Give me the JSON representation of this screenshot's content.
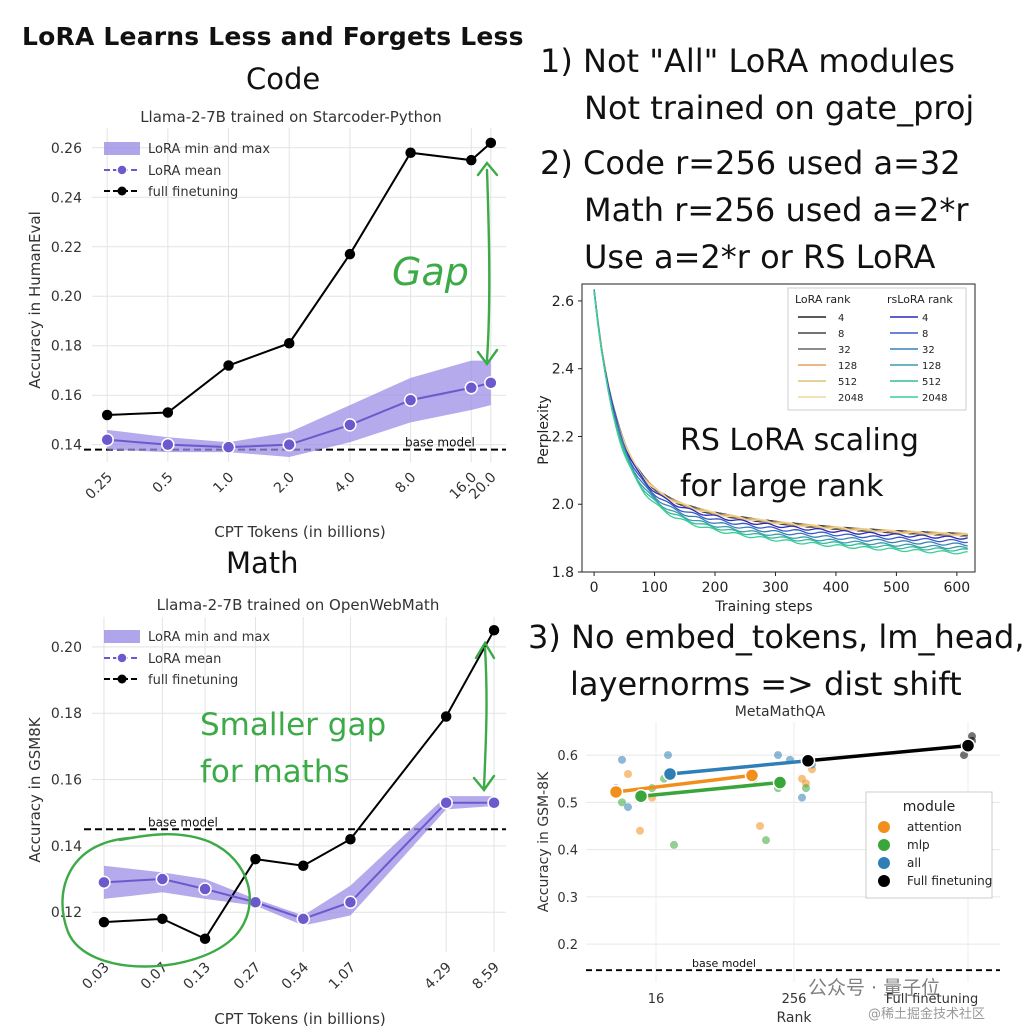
{
  "header": {
    "title": "LoRA Learns Less and Forgets Less"
  },
  "notes": {
    "n1_line1": "1) Not \"All\" LoRA modules",
    "n1_line2": "Not trained on gate_proj",
    "n2_line1": "2) Code r=256 used a=32",
    "n2_line2": "Math r=256 used a=2*r",
    "n2_line3": "Use a=2*r or RS LoRA",
    "n3_line1": "3) No embed_tokens, lm_head,",
    "n3_line2": "layernorms => dist shift"
  },
  "annotations": {
    "code_heading": "Code",
    "math_heading": "Math",
    "gap": "Gap",
    "smaller_gap_1": "Smaller gap",
    "smaller_gap_2": "for maths",
    "rs_1": "RS LoRA scaling",
    "rs_2": "for large rank",
    "annotation_color": "#3daa48"
  },
  "watermark": {
    "line1": "公众号 · 量子位",
    "line2": "@稀土掘金技术社区"
  },
  "colors": {
    "lora": "#6a5acd",
    "lora_band": "#9b8ee6",
    "full": "#000000",
    "attention": "#f28e1c",
    "mlp": "#3aa53a",
    "all": "#2f7fb6"
  },
  "chart_data": [
    {
      "id": "code",
      "type": "line",
      "title": "Llama-2-7B trained on Starcoder-Python",
      "xlabel": "CPT Tokens (in billions)",
      "ylabel": "Accuracy in HumanEval",
      "x_ticks": [
        "0.25",
        "0.5",
        "1.0",
        "2.0",
        "4.0",
        "8.0",
        "16.0",
        "20.0"
      ],
      "x": [
        0.25,
        0.5,
        1.0,
        2.0,
        4.0,
        8.0,
        16.0,
        20.0
      ],
      "x_scale": "log",
      "ylim": [
        0.133,
        0.268
      ],
      "y_ticks": [
        "0.14",
        "0.16",
        "0.18",
        "0.20",
        "0.22",
        "0.24",
        "0.26"
      ],
      "legend": [
        "LoRA min and max",
        "LoRA mean",
        "full finetuning"
      ],
      "legend_position": "top-left",
      "base_model": 0.138,
      "base_model_label": "base model",
      "series": [
        {
          "name": "full finetuning",
          "values": [
            0.152,
            0.153,
            0.172,
            0.181,
            0.217,
            0.258,
            0.255,
            0.262
          ]
        },
        {
          "name": "LoRA mean",
          "values": [
            0.142,
            0.14,
            0.139,
            0.14,
            0.148,
            0.158,
            0.163,
            0.165
          ]
        },
        {
          "name": "LoRA min",
          "values": [
            0.138,
            0.137,
            0.137,
            0.135,
            0.141,
            0.149,
            0.154,
            0.156
          ]
        },
        {
          "name": "LoRA max",
          "values": [
            0.146,
            0.143,
            0.141,
            0.145,
            0.156,
            0.167,
            0.174,
            0.174
          ]
        }
      ]
    },
    {
      "id": "math",
      "type": "line",
      "title": "Llama-2-7B trained on OpenWebMath",
      "xlabel": "CPT Tokens (in billions)",
      "ylabel": "Accuracy in GSM8K",
      "x_ticks": [
        "0.03",
        "0.07",
        "0.13",
        "0.27",
        "0.54",
        "1.07",
        "4.29",
        "8.59"
      ],
      "x_scale": "log",
      "ylim": [
        0.108,
        0.209
      ],
      "y_ticks": [
        "0.12",
        "0.14",
        "0.16",
        "0.18",
        "0.20"
      ],
      "legend": [
        "LoRA min and max",
        "LoRA mean",
        "full finetuning"
      ],
      "legend_position": "top-left",
      "base_model": 0.145,
      "base_model_label": "base model",
      "series": [
        {
          "name": "full finetuning",
          "x": [
            0.03,
            0.07,
            0.13,
            0.27,
            0.54,
            1.07,
            4.29,
            8.59
          ],
          "values": [
            0.117,
            0.118,
            0.112,
            0.136,
            0.134,
            0.142,
            0.179,
            0.205
          ]
        },
        {
          "name": "LoRA mean",
          "x": [
            0.03,
            0.07,
            0.13,
            0.27,
            0.54,
            1.07,
            4.29,
            8.59
          ],
          "values": [
            0.129,
            0.13,
            0.127,
            0.123,
            0.118,
            0.123,
            0.153,
            0.153
          ]
        },
        {
          "name": "LoRA min",
          "x": [
            0.03,
            0.07,
            0.13,
            0.27,
            0.54,
            1.07,
            4.29,
            8.59
          ],
          "values": [
            0.124,
            0.126,
            0.124,
            0.122,
            0.116,
            0.119,
            0.151,
            0.152
          ]
        },
        {
          "name": "LoRA max",
          "x": [
            0.03,
            0.07,
            0.13,
            0.27,
            0.54,
            1.07,
            4.29,
            8.59
          ],
          "values": [
            0.134,
            0.132,
            0.13,
            0.124,
            0.119,
            0.128,
            0.155,
            0.155
          ]
        }
      ]
    },
    {
      "id": "perplexity",
      "type": "line",
      "title": "",
      "xlabel": "Training steps",
      "ylabel": "Perplexity",
      "xlim": [
        -20,
        630
      ],
      "x_ticks": [
        0,
        100,
        200,
        300,
        400,
        500,
        600
      ],
      "ylim": [
        1.8,
        2.65
      ],
      "y_ticks": [
        "1.8",
        "2.0",
        "2.2",
        "2.4",
        "2.6"
      ],
      "legend_columns": [
        "LoRA rank",
        "rsLoRA rank"
      ],
      "legend_ranks": [
        "4",
        "8",
        "32",
        "128",
        "512",
        "2048"
      ],
      "legend_position": "top-right",
      "series": [
        {
          "name": "LoRA 4",
          "color": "#222222",
          "start": 2.63,
          "end": 1.895
        },
        {
          "name": "LoRA 8",
          "color": "#444444",
          "start": 2.63,
          "end": 1.895
        },
        {
          "name": "LoRA 32",
          "color": "#666666",
          "start": 2.63,
          "end": 1.895
        },
        {
          "name": "LoRA 128",
          "color": "#e0a060",
          "start": 2.63,
          "end": 1.895
        },
        {
          "name": "LoRA 512",
          "color": "#e0c07a",
          "start": 2.63,
          "end": 1.895
        },
        {
          "name": "LoRA 2048",
          "color": "#f0d89a",
          "start": 2.63,
          "end": 1.895
        },
        {
          "name": "rsLoRA 4",
          "color": "#2a2ab8",
          "start": 2.63,
          "end": 1.885
        },
        {
          "name": "rsLoRA 8",
          "color": "#3a5ac8",
          "start": 2.63,
          "end": 1.875
        },
        {
          "name": "rsLoRA 32",
          "color": "#3a80b8",
          "start": 2.63,
          "end": 1.865
        },
        {
          "name": "rsLoRA 128",
          "color": "#3a9ea8",
          "start": 2.63,
          "end": 1.855
        },
        {
          "name": "rsLoRA 512",
          "color": "#3ab8a0",
          "start": 2.63,
          "end": 1.848
        },
        {
          "name": "rsLoRA 2048",
          "color": "#3ccf98",
          "start": 2.63,
          "end": 1.84
        }
      ]
    },
    {
      "id": "metamath",
      "type": "scatter",
      "title": "MetaMathQA",
      "xlabel": "Rank",
      "ylabel": "Accuracy in GSM-8K",
      "x_ticks": [
        "16",
        "256",
        "Full finetuning"
      ],
      "ylim": [
        0.12,
        0.67
      ],
      "y_ticks": [
        "0.2",
        "0.3",
        "0.4",
        "0.5",
        "0.6"
      ],
      "base_model": 0.145,
      "base_model_label": "base model",
      "legend_title": "module",
      "legend": [
        "attention",
        "mlp",
        "all",
        "Full finetuning"
      ],
      "legend_position": "right",
      "series": [
        {
          "name": "attention",
          "color": "#f28e1c",
          "fit": [
            [
              0,
              0.522
            ],
            [
              1,
              0.557
            ]
          ],
          "points": [
            [
              0,
              0.52
            ],
            [
              0,
              0.56
            ],
            [
              0,
              0.44
            ],
            [
              0,
              0.51
            ],
            [
              1,
              0.55
            ],
            [
              1,
              0.57
            ],
            [
              1,
              0.45
            ],
            [
              1,
              0.54
            ]
          ]
        },
        {
          "name": "mlp",
          "color": "#3aa53a",
          "fit": [
            [
              0,
              0.513
            ],
            [
              1,
              0.542
            ]
          ],
          "points": [
            [
              0,
              0.53
            ],
            [
              0,
              0.55
            ],
            [
              0,
              0.41
            ],
            [
              0,
              0.5
            ],
            [
              1,
              0.53
            ],
            [
              1,
              0.55
            ],
            [
              1,
              0.42
            ],
            [
              1,
              0.53
            ]
          ]
        },
        {
          "name": "all",
          "color": "#2f7fb6",
          "fit": [
            [
              0,
              0.56
            ],
            [
              1,
              0.588
            ]
          ],
          "points": [
            [
              0,
              0.59
            ],
            [
              0,
              0.6
            ],
            [
              0,
              0.53
            ],
            [
              0,
              0.49
            ],
            [
              1,
              0.6
            ],
            [
              1,
              0.59
            ],
            [
              1,
              0.51
            ],
            [
              1,
              0.58
            ]
          ]
        },
        {
          "name": "Full finetuning",
          "color": "#000000",
          "fit": [
            [
              1,
              0.588
            ],
            [
              2,
              0.62
            ]
          ],
          "points": [
            [
              2,
              0.62
            ],
            [
              2,
              0.64
            ],
            [
              2,
              0.6
            ],
            [
              2,
              0.63
            ]
          ]
        }
      ]
    }
  ]
}
